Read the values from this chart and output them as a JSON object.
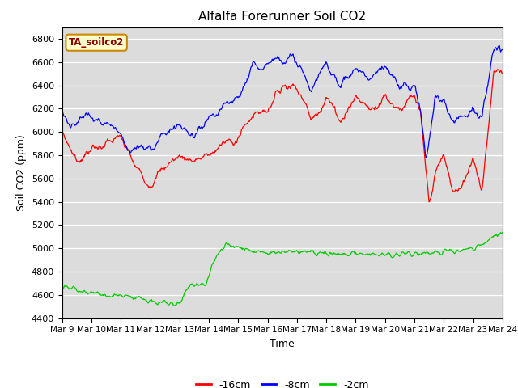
{
  "title": "Alfalfa Forerunner Soil CO2",
  "xlabel": "Time",
  "ylabel": "Soil CO2 (ppm)",
  "ylim": [
    4400,
    6900
  ],
  "yticks": [
    4400,
    4600,
    4800,
    5000,
    5200,
    5400,
    5600,
    5800,
    6000,
    6200,
    6400,
    6600,
    6800
  ],
  "x_labels": [
    "Mar 9",
    "Mar 10",
    "Mar 11",
    "Mar 12",
    "Mar 13",
    "Mar 14",
    "Mar 15",
    "Mar 16",
    "Mar 17",
    "Mar 18",
    "Mar 19",
    "Mar 20",
    "Mar 21",
    "Mar 22",
    "Mar 23",
    "Mar 24"
  ],
  "n_points": 720,
  "colors": {
    "neg16cm": "#ff0000",
    "neg8cm": "#0000ff",
    "neg2cm": "#00cc00",
    "background": "#dcdcdc",
    "annotation_bg": "#ffffcc",
    "annotation_border": "#cc8800"
  },
  "legend_labels": [
    "-16cm",
    "-8cm",
    "-2cm"
  ],
  "annotation_text": "TA_soilco2"
}
